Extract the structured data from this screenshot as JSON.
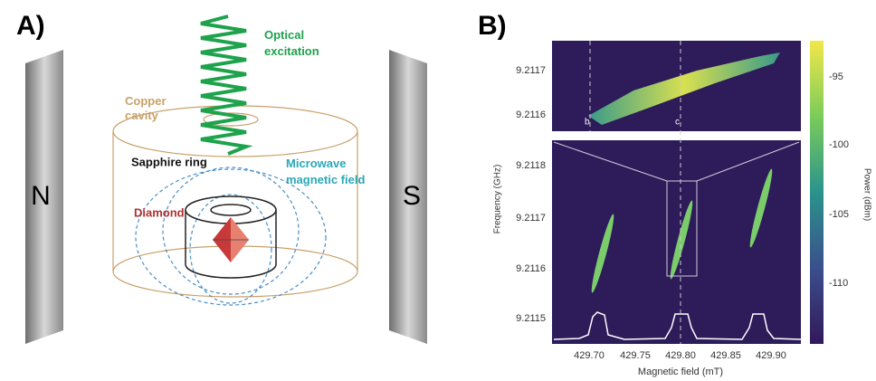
{
  "panel_a": {
    "label": "A)",
    "north": "N",
    "south": "S",
    "optical_excitation": [
      "Optical",
      "excitation"
    ],
    "copper_cavity": [
      "Copper",
      "cavity"
    ],
    "sapphire_ring": "Sapphire ring",
    "microwave_field": [
      "Microwave",
      "magnetic field"
    ],
    "diamond": "Diamond"
  },
  "panel_b": {
    "label": "B)",
    "top_yticks": [
      "9.2117",
      "9.2116"
    ],
    "bottom_yticks": [
      "9.2118",
      "9.2117",
      "9.2116",
      "9.2115"
    ],
    "xticks": [
      "429.70",
      "429.75",
      "429.80",
      "429.85",
      "429.90"
    ],
    "xlabel": "Magnetic field (mT)",
    "ylabel": "Frequency (GHz)",
    "colorbar_ticks": [
      "-95",
      "-100",
      "-105",
      "-110"
    ],
    "colorbar_label": "Power (dBm)",
    "markers": [
      "b",
      "c"
    ]
  }
}
